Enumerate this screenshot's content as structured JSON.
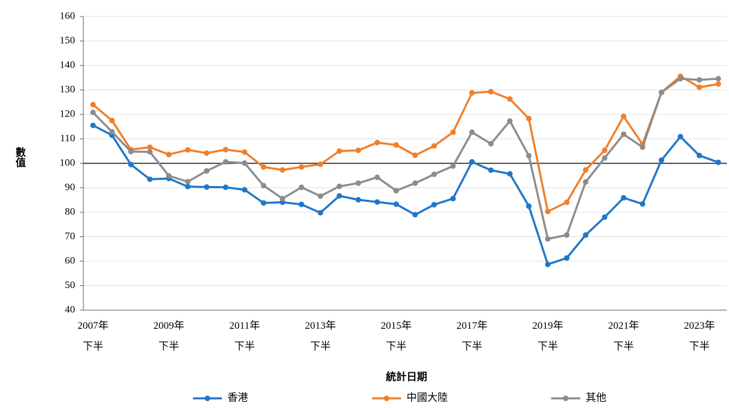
{
  "chart_data": {
    "type": "line",
    "x_label": "統計日期",
    "y_label": "數值",
    "categories": [
      "2007年\n下半",
      null,
      null,
      null,
      "2009年\n下半",
      null,
      null,
      null,
      "2011年\n下半",
      null,
      null,
      null,
      "2013年\n下半",
      null,
      null,
      null,
      "2015年\n下半",
      null,
      null,
      null,
      "2017年\n下半",
      null,
      null,
      null,
      "2019年\n下半",
      null,
      null,
      null,
      "2021年\n下半",
      null,
      null,
      null,
      "2023年\n下半",
      null
    ],
    "series": [
      {
        "name": "香港",
        "color": "#1f77c9",
        "values": [
          115.5,
          111.5,
          99.5,
          93.5,
          93.8,
          90.5,
          90.3,
          90.2,
          89.2,
          83.8,
          84.1,
          83.2,
          79.8,
          86.7,
          85.1,
          84.2,
          83.3,
          79,
          83.1,
          85.6,
          100.6,
          97.2,
          95.7,
          82.5,
          58.7,
          61.3,
          70.7,
          78,
          85.9,
          83.4,
          101.3,
          110.9,
          103.2,
          100.4
        ]
      },
      {
        "name": "中國大陸",
        "color": "#f07f2a",
        "values": [
          124,
          117.5,
          105.6,
          106.6,
          103.6,
          105.5,
          104.2,
          105.6,
          104.6,
          98.5,
          97.3,
          98.5,
          99.6,
          105,
          105.3,
          108.5,
          107.5,
          103.3,
          107.1,
          112.7,
          128.8,
          129.3,
          126.3,
          118.3,
          80.3,
          84.1,
          97.3,
          105.3,
          119.2,
          107.8,
          129,
          135.6,
          131.1,
          132.4
        ]
      },
      {
        "name": "其他",
        "color": "#8c8c8c",
        "values": [
          120.8,
          112.9,
          104.8,
          104.7,
          94.9,
          92.5,
          96.9,
          100.6,
          100.1,
          90.9,
          85.6,
          90.2,
          86.6,
          90.6,
          91.9,
          94.3,
          88.8,
          91.9,
          95.5,
          98.9,
          112.7,
          108,
          117.3,
          103.1,
          69.1,
          70.7,
          92.4,
          102.2,
          111.9,
          106.6,
          129,
          134.6,
          134.1,
          134.6
        ]
      }
    ],
    "ylim": [
      40,
      160
    ],
    "yticks": [
      40,
      50,
      60,
      70,
      80,
      90,
      100,
      110,
      120,
      130,
      140,
      150,
      160
    ],
    "reference_line": 100,
    "grid": true,
    "legend": "bottom"
  }
}
